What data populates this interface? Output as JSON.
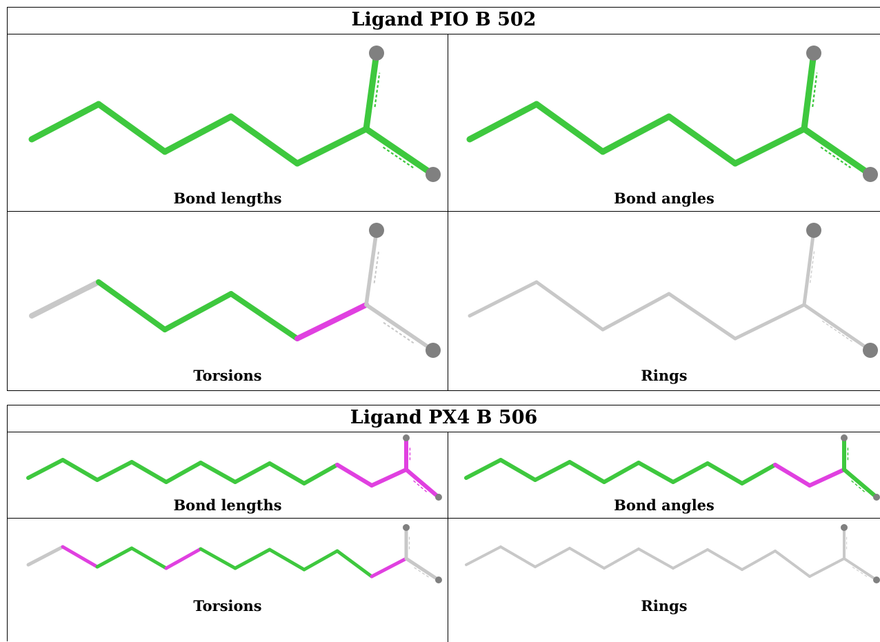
{
  "tables": [
    {
      "title": "Ligand PIO B 502",
      "panels": [
        {
          "caption": "Bond lengths",
          "kind": "lengths"
        },
        {
          "caption": "Bond angles",
          "kind": "angles"
        },
        {
          "caption": "Torsions",
          "kind": "torsions"
        },
        {
          "caption": "Rings",
          "kind": "rings"
        }
      ]
    },
    {
      "title": "Ligand PX4 B 506",
      "panels": [
        {
          "caption": "Bond lengths",
          "kind": "lengths"
        },
        {
          "caption": "Bond angles",
          "kind": "angles"
        },
        {
          "caption": "Torsions",
          "kind": "torsions"
        },
        {
          "caption": "Rings",
          "kind": "rings"
        }
      ]
    }
  ],
  "colors": {
    "ok": "#3ec83e",
    "outlier": "#e040e0",
    "neutral": "#c8c8c8",
    "atom": "#808080",
    "border": "#000000"
  }
}
